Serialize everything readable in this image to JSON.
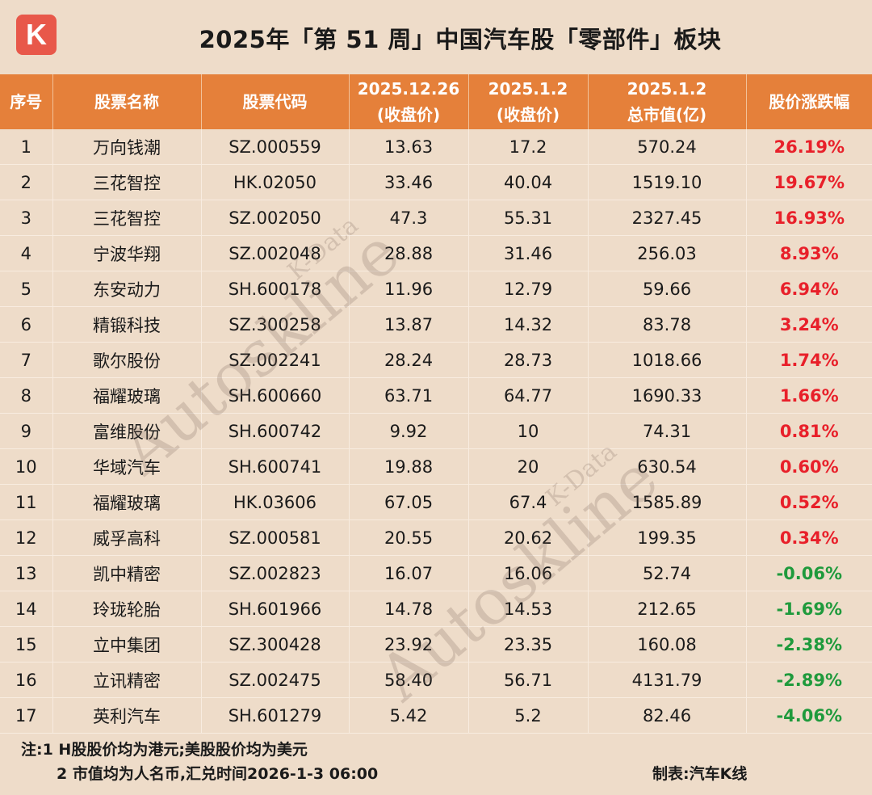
{
  "logo_letter": "K",
  "title": "2025年「第 51 周」中国汽车股「零部件」板块",
  "headers": {
    "h0": "序号",
    "h1": "股票名称",
    "h2": "股票代码",
    "h3a": "2025.12.26",
    "h3b": "(收盘价)",
    "h4a": "2025.1.2",
    "h4b": "(收盘价)",
    "h5a": "2025.1.2",
    "h5b": "总市值(亿)",
    "h6": "股价涨跌幅"
  },
  "rows": [
    {
      "no": "1",
      "name": "万向钱潮",
      "code": "SZ.000559",
      "close1": "13.63",
      "close2": "17.2",
      "cap": "570.24",
      "chg": "26.19%",
      "dir": "up"
    },
    {
      "no": "2",
      "name": "三花智控",
      "code": "HK.02050",
      "close1": "33.46",
      "close2": "40.04",
      "cap": "1519.10",
      "chg": "19.67%",
      "dir": "up"
    },
    {
      "no": "3",
      "name": "三花智控",
      "code": "SZ.002050",
      "close1": "47.3",
      "close2": "55.31",
      "cap": "2327.45",
      "chg": "16.93%",
      "dir": "up"
    },
    {
      "no": "4",
      "name": "宁波华翔",
      "code": "SZ.002048",
      "close1": "28.88",
      "close2": "31.46",
      "cap": "256.03",
      "chg": "8.93%",
      "dir": "up"
    },
    {
      "no": "5",
      "name": "东安动力",
      "code": "SH.600178",
      "close1": "11.96",
      "close2": "12.79",
      "cap": "59.66",
      "chg": "6.94%",
      "dir": "up"
    },
    {
      "no": "6",
      "name": "精锻科技",
      "code": "SZ.300258",
      "close1": "13.87",
      "close2": "14.32",
      "cap": "83.78",
      "chg": "3.24%",
      "dir": "up"
    },
    {
      "no": "7",
      "name": "歌尔股份",
      "code": "SZ.002241",
      "close1": "28.24",
      "close2": "28.73",
      "cap": "1018.66",
      "chg": "1.74%",
      "dir": "up"
    },
    {
      "no": "8",
      "name": "福耀玻璃",
      "code": "SH.600660",
      "close1": "63.71",
      "close2": "64.77",
      "cap": "1690.33",
      "chg": "1.66%",
      "dir": "up"
    },
    {
      "no": "9",
      "name": "富维股份",
      "code": "SH.600742",
      "close1": "9.92",
      "close2": "10",
      "cap": "74.31",
      "chg": "0.81%",
      "dir": "up"
    },
    {
      "no": "10",
      "name": "华域汽车",
      "code": "SH.600741",
      "close1": "19.88",
      "close2": "20",
      "cap": "630.54",
      "chg": "0.60%",
      "dir": "up"
    },
    {
      "no": "11",
      "name": "福耀玻璃",
      "code": "HK.03606",
      "close1": "67.05",
      "close2": "67.4",
      "cap": "1585.89",
      "chg": "0.52%",
      "dir": "up"
    },
    {
      "no": "12",
      "name": "威孚高科",
      "code": "SZ.000581",
      "close1": "20.55",
      "close2": "20.62",
      "cap": "199.35",
      "chg": "0.34%",
      "dir": "up"
    },
    {
      "no": "13",
      "name": "凯中精密",
      "code": "SZ.002823",
      "close1": "16.07",
      "close2": "16.06",
      "cap": "52.74",
      "chg": "-0.06%",
      "dir": "down"
    },
    {
      "no": "14",
      "name": "玲珑轮胎",
      "code": "SH.601966",
      "close1": "14.78",
      "close2": "14.53",
      "cap": "212.65",
      "chg": "-1.69%",
      "dir": "down"
    },
    {
      "no": "15",
      "name": "立中集团",
      "code": "SZ.300428",
      "close1": "23.92",
      "close2": "23.35",
      "cap": "160.08",
      "chg": "-2.38%",
      "dir": "down"
    },
    {
      "no": "16",
      "name": "立讯精密",
      "code": "SZ.002475",
      "close1": "58.40",
      "close2": "56.71",
      "cap": "4131.79",
      "chg": "-2.89%",
      "dir": "down"
    },
    {
      "no": "17",
      "name": "英利汽车",
      "code": "SH.601279",
      "close1": "5.42",
      "close2": "5.2",
      "cap": "82.46",
      "chg": "-4.06%",
      "dir": "down"
    }
  ],
  "watermark": {
    "small": "K-Data",
    "big": "Autoskline"
  },
  "notes": {
    "line1": "注:1  H股股价均为港元;美股股价均为美元",
    "line2": "2  市值均为人名币,汇兑时间2026-1-3  06:00",
    "maker": "制表:汽车K线"
  },
  "colors": {
    "header_bg": "#e5803a",
    "page_bg": "#eedcc9",
    "up": "#e8202a",
    "down": "#1f9a3c"
  }
}
